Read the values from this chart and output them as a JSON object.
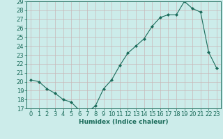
{
  "x": [
    0,
    1,
    2,
    3,
    4,
    5,
    6,
    7,
    8,
    9,
    10,
    11,
    12,
    13,
    14,
    15,
    16,
    17,
    18,
    19,
    20,
    21,
    22,
    23
  ],
  "y": [
    20.2,
    20.0,
    19.2,
    18.7,
    18.0,
    17.7,
    16.8,
    16.6,
    17.3,
    19.2,
    20.2,
    21.8,
    23.2,
    24.0,
    24.8,
    26.2,
    27.2,
    27.5,
    27.5,
    29.0,
    28.2,
    27.8,
    23.3,
    21.5
  ],
  "line_color": "#1a6b5a",
  "marker": "D",
  "marker_size": 2.0,
  "bg_color": "#ccecea",
  "grid_color": "#c8b8b8",
  "axis_color": "#1a6b5a",
  "xlabel": "Humidex (Indice chaleur)",
  "ylim": [
    17,
    29
  ],
  "xlim": [
    -0.5,
    23.5
  ],
  "yticks": [
    17,
    18,
    19,
    20,
    21,
    22,
    23,
    24,
    25,
    26,
    27,
    28,
    29
  ],
  "xticks": [
    0,
    1,
    2,
    3,
    4,
    5,
    6,
    7,
    8,
    9,
    10,
    11,
    12,
    13,
    14,
    15,
    16,
    17,
    18,
    19,
    20,
    21,
    22,
    23
  ],
  "label_fontsize": 6.5,
  "tick_fontsize": 6.0
}
